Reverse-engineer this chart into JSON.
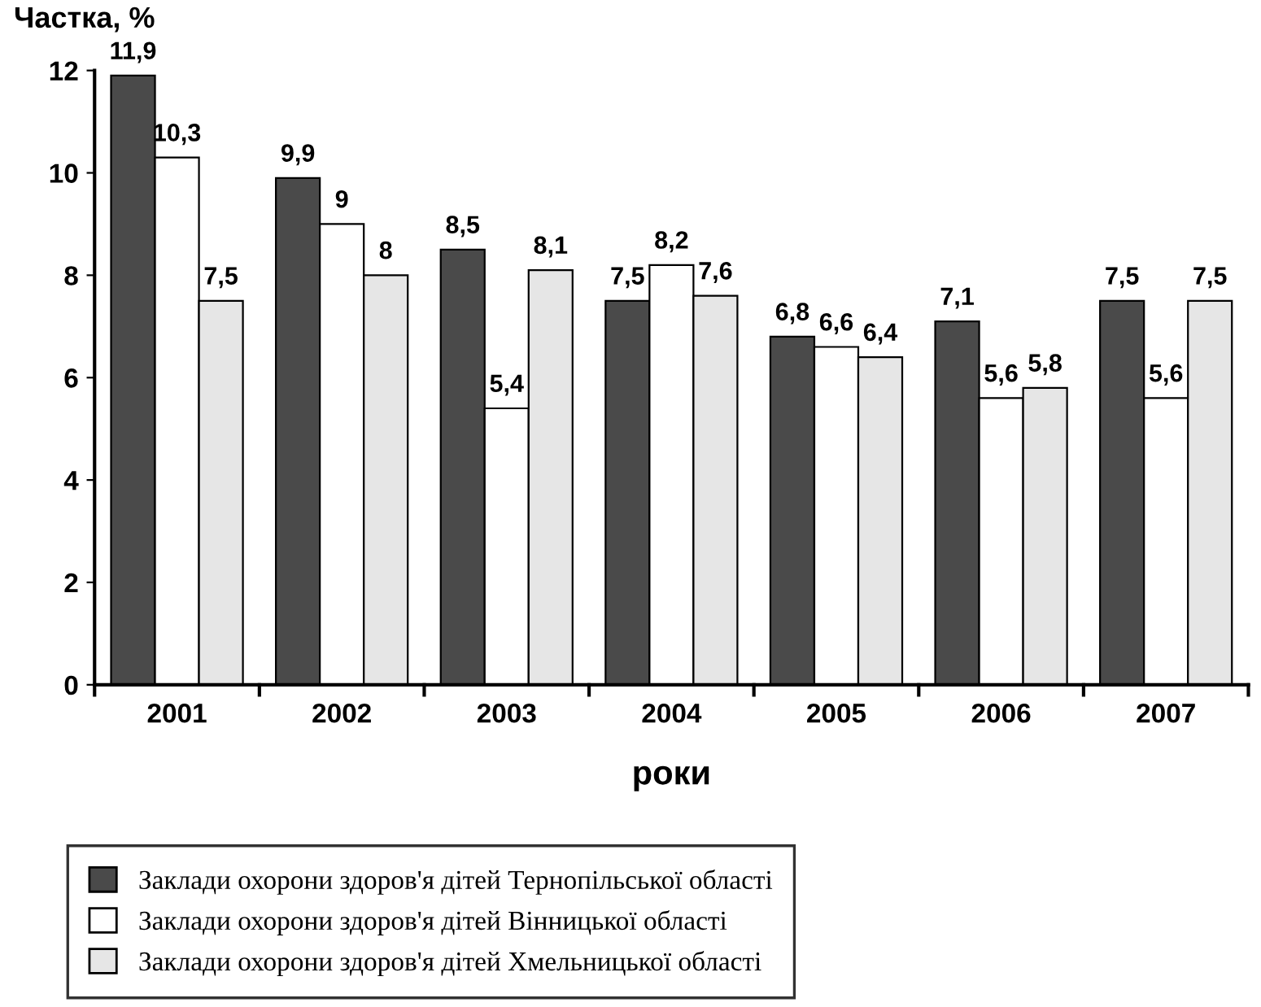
{
  "chart_data": {
    "type": "bar",
    "ylabel": "Частка, %",
    "xlabel": "роки",
    "categories": [
      "2001",
      "2002",
      "2003",
      "2004",
      "2005",
      "2006",
      "2007"
    ],
    "series": [
      {
        "name": "Заклади охорони здоров'я дітей Тернопільської області",
        "color": "#4a4a4a",
        "values": [
          11.9,
          9.9,
          8.5,
          7.5,
          6.8,
          7.1,
          7.5
        ],
        "value_labels": [
          "11,9",
          "9,9",
          "8,5",
          "7,5",
          "6,8",
          "7,1",
          "7,5"
        ]
      },
      {
        "name": "Заклади охорони здоров'я дітей Вінницької області",
        "color": "#ffffff",
        "values": [
          10.3,
          9,
          5.4,
          8.2,
          6.6,
          5.6,
          5.6
        ],
        "value_labels": [
          "10,3",
          "9",
          "5,4",
          "8,2",
          "6,6",
          "5,6",
          "5,6"
        ]
      },
      {
        "name": "Заклади охорони здоров'я дітей Хмельницької області",
        "color": "#e6e6e6",
        "values": [
          7.5,
          8,
          8.1,
          7.6,
          6.4,
          5.8,
          7.5
        ],
        "value_labels": [
          "7,5",
          "8",
          "8,1",
          "7,6",
          "6,4",
          "5,8",
          "7,5"
        ]
      }
    ],
    "ylim": [
      0,
      12
    ],
    "yticks": [
      0,
      2,
      4,
      6,
      8,
      10,
      12
    ],
    "grid": false,
    "legend": "bottom"
  }
}
